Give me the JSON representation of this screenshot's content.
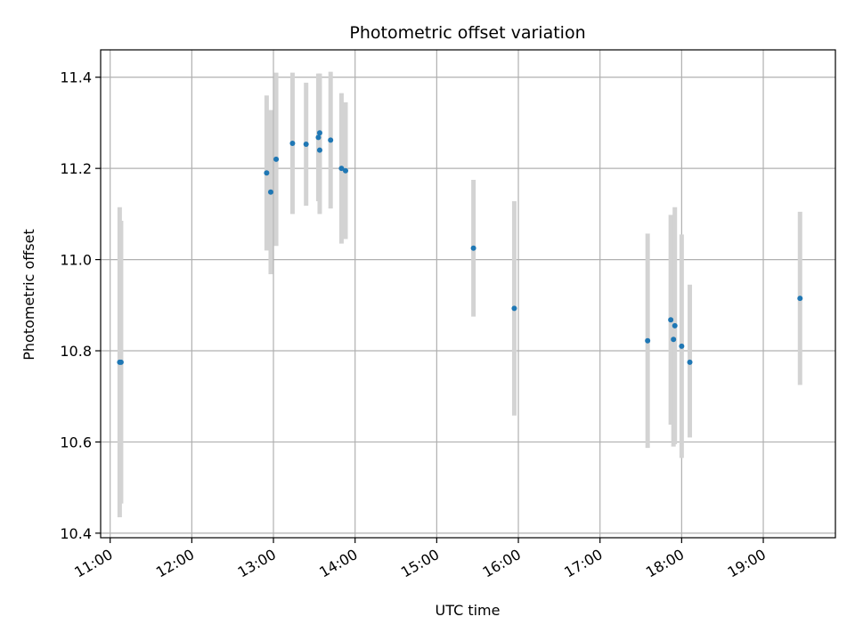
{
  "chart_data": {
    "type": "scatter",
    "title": "Photometric offset variation",
    "xlabel": "UTC time",
    "ylabel": "Photometric offset",
    "xlim": [
      "10:53",
      "19:53"
    ],
    "ylim": [
      10.39,
      11.46
    ],
    "grid": true,
    "x_ticks": [
      "11:00",
      "12:00",
      "13:00",
      "14:00",
      "15:00",
      "16:00",
      "17:00",
      "18:00",
      "19:00"
    ],
    "y_ticks": [
      10.4,
      10.6,
      10.8,
      11.0,
      11.2,
      11.4
    ],
    "point_color": "#1f77b4",
    "errorbar_color": "#d3d3d3",
    "series": [
      {
        "points": [
          {
            "time": "11:07",
            "y": 10.775,
            "lo": 10.435,
            "hi": 11.115
          },
          {
            "time": "11:08",
            "y": 10.775,
            "lo": 10.465,
            "hi": 11.085
          },
          {
            "time": "12:55",
            "y": 11.19,
            "lo": 11.02,
            "hi": 11.36
          },
          {
            "time": "12:58",
            "y": 11.148,
            "lo": 10.968,
            "hi": 11.328
          },
          {
            "time": "13:02",
            "y": 11.22,
            "lo": 11.03,
            "hi": 11.41
          },
          {
            "time": "13:14",
            "y": 11.255,
            "lo": 11.1,
            "hi": 11.41
          },
          {
            "time": "13:24",
            "y": 11.253,
            "lo": 11.118,
            "hi": 11.388
          },
          {
            "time": "13:33",
            "y": 11.268,
            "lo": 11.128,
            "hi": 11.408
          },
          {
            "time": "13:34",
            "y": 11.278,
            "lo": 11.148,
            "hi": 11.408
          },
          {
            "time": "13:34",
            "y": 11.24,
            "lo": 11.1,
            "hi": 11.38
          },
          {
            "time": "13:42",
            "y": 11.262,
            "lo": 11.112,
            "hi": 11.412
          },
          {
            "time": "13:50",
            "y": 11.2,
            "lo": 11.035,
            "hi": 11.365
          },
          {
            "time": "13:53",
            "y": 11.195,
            "lo": 11.045,
            "hi": 11.345
          },
          {
            "time": "15:27",
            "y": 11.025,
            "lo": 10.875,
            "hi": 11.175
          },
          {
            "time": "15:57",
            "y": 10.893,
            "lo": 10.658,
            "hi": 11.128
          },
          {
            "time": "17:35",
            "y": 10.822,
            "lo": 10.587,
            "hi": 11.057
          },
          {
            "time": "17:52",
            "y": 10.868,
            "lo": 10.638,
            "hi": 11.098
          },
          {
            "time": "17:54",
            "y": 10.825,
            "lo": 10.59,
            "hi": 11.06
          },
          {
            "time": "17:55",
            "y": 10.855,
            "lo": 10.595,
            "hi": 11.115
          },
          {
            "time": "18:00",
            "y": 10.81,
            "lo": 10.565,
            "hi": 11.055
          },
          {
            "time": "18:06",
            "y": 10.775,
            "lo": 10.61,
            "hi": 10.945
          },
          {
            "time": "19:27",
            "y": 10.915,
            "lo": 10.725,
            "hi": 11.105
          }
        ]
      }
    ]
  }
}
